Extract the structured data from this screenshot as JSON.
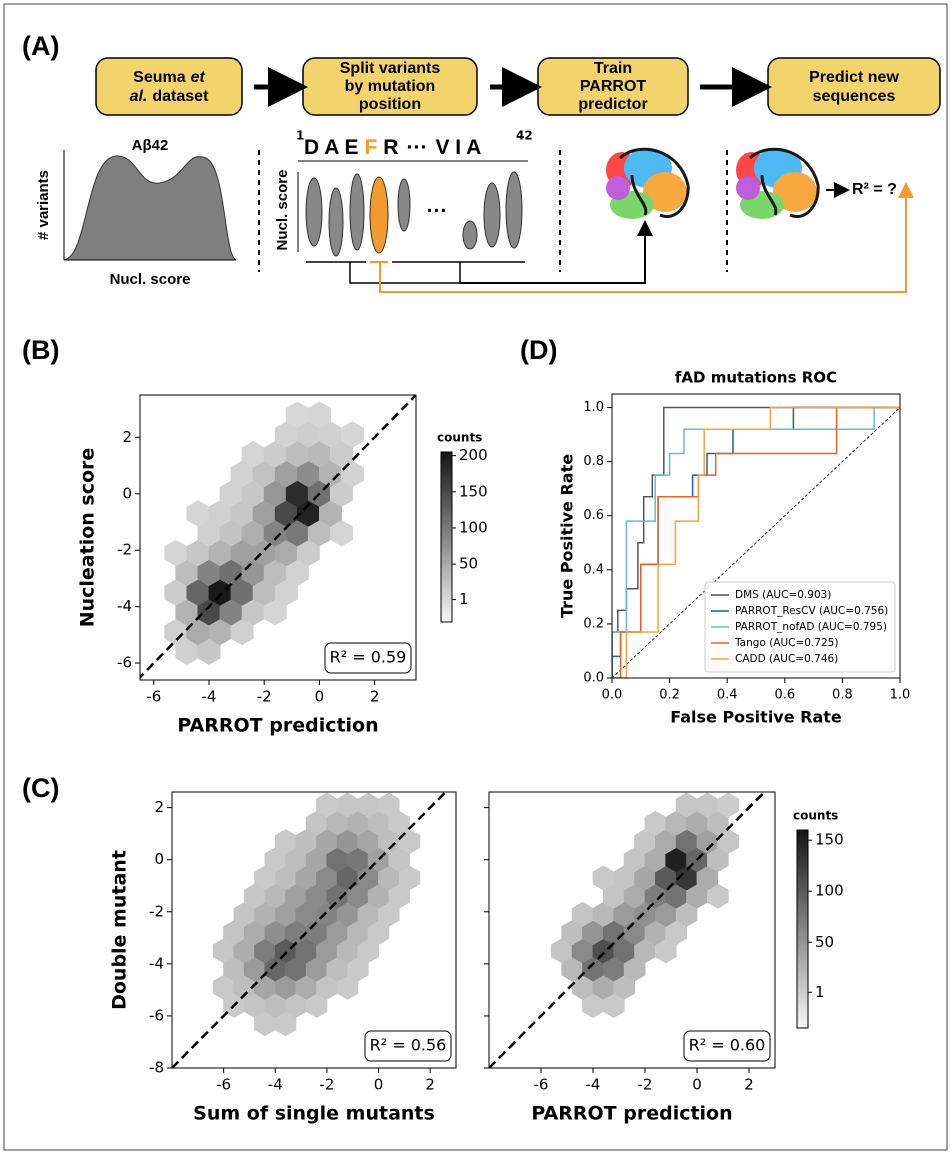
{
  "panel_labels": [
    "(A)",
    "(B)",
    "(C)",
    "(D)"
  ],
  "diagram": {
    "steps": [
      [
        "Seuma",
        "et",
        "al.",
        "dataset"
      ],
      [
        "Split variants",
        "by mutation",
        "position"
      ],
      [
        "Train",
        "PARROT",
        "predictor"
      ],
      [
        "Predict new",
        "sequences"
      ]
    ],
    "density": {
      "title": "Aβ42",
      "ylabel": "# variants",
      "xlabel": "Nucl. score"
    },
    "sequence": {
      "start": "1",
      "residues_before": "D A E",
      "mutated": "F",
      "residues_after": "R",
      "ellipsis": "···",
      "residues_end": "V I A",
      "end": "42",
      "ylabel": "Nucl. score",
      "violin_ellipsis": "···"
    },
    "result": "R² = ?"
  },
  "chart_data": [
    {
      "type": "hexbin",
      "xlabel": "PARROT prediction",
      "ylabel": "Nucleation score",
      "annotation": "R² = 0.59",
      "xlim": [
        -6.5,
        3.5
      ],
      "ylim": [
        -6.6,
        3.5
      ],
      "xticks": [
        -6,
        -4,
        -2,
        0,
        2
      ],
      "yticks": [
        -6,
        -4,
        -2,
        0,
        2
      ],
      "show_yticklabels": true,
      "reference_line": true,
      "x": [
        -4.8,
        -4.0,
        -5.2,
        -4.4,
        -3.6,
        -2.8,
        -4.8,
        -4.0,
        -3.2,
        -2.4,
        -1.6,
        -5.2,
        -4.4,
        -3.6,
        -2.8,
        -2.0,
        -1.2,
        -4.8,
        -4.0,
        -3.2,
        -2.4,
        -1.6,
        -0.8,
        -5.2,
        -4.4,
        -3.6,
        -2.8,
        -2.0,
        -1.2,
        -0.4,
        -4.0,
        -3.2,
        -2.4,
        -1.6,
        -0.8,
        0,
        0.8,
        -4.4,
        -3.6,
        -2.8,
        -2.0,
        -1.2,
        -0.4,
        0.4,
        -3.2,
        -2.4,
        -1.6,
        -0.8,
        0,
        0.8,
        -2.8,
        -2.0,
        -1.2,
        -0.4,
        0.4,
        1.2,
        -2.4,
        -1.6,
        -0.8,
        0,
        0.8,
        -1.2,
        -0.4,
        0.4,
        1.2,
        -0.8,
        0
      ],
      "y": [
        -5.6,
        -5.6,
        -4.9,
        -4.9,
        -4.9,
        -4.9,
        -4.2,
        -4.2,
        -4.2,
        -4.2,
        -4.2,
        -3.5,
        -3.5,
        -3.5,
        -3.5,
        -3.5,
        -3.5,
        -2.8,
        -2.8,
        -2.8,
        -2.8,
        -2.8,
        -2.8,
        -2.1,
        -2.1,
        -2.1,
        -2.1,
        -2.1,
        -2.1,
        -2.1,
        -1.4,
        -1.4,
        -1.4,
        -1.4,
        -1.4,
        -1.4,
        -1.4,
        -0.7,
        -0.7,
        -0.7,
        -0.7,
        -0.7,
        -0.7,
        -0.7,
        0,
        0,
        0,
        0,
        0,
        0,
        0.7,
        0.7,
        0.7,
        0.7,
        0.7,
        0.7,
        1.4,
        1.4,
        1.4,
        1.4,
        1.4,
        2.1,
        2.1,
        2.1,
        2.1,
        2.8,
        2.8
      ],
      "counts": [
        10,
        20,
        10,
        50,
        40,
        10,
        40,
        150,
        90,
        20,
        5,
        15,
        120,
        200,
        110,
        30,
        8,
        30,
        90,
        110,
        70,
        30,
        8,
        5,
        20,
        40,
        60,
        60,
        50,
        15,
        10,
        25,
        45,
        90,
        100,
        30,
        5,
        5,
        10,
        20,
        60,
        150,
        190,
        40,
        8,
        20,
        70,
        180,
        110,
        15,
        8,
        25,
        60,
        80,
        40,
        8,
        5,
        15,
        30,
        35,
        15,
        8,
        12,
        10,
        4,
        3,
        5
      ],
      "colorbar": {
        "label": "counts",
        "lim": [
          -30,
          205
        ],
        "ticks": [
          1,
          50,
          100,
          150,
          200
        ]
      }
    },
    {
      "type": "line",
      "title": "fAD mutations ROC",
      "xlabel": "False Positive Rate",
      "ylabel": "True Positive Rate",
      "xlim": [
        0,
        1
      ],
      "ylim": [
        0,
        1.05
      ],
      "reference_line": true,
      "legend": "lower right",
      "xticks": [
        {
          "value": 0,
          "label": "0.0"
        },
        0.2,
        0.4,
        0.6,
        0.8,
        {
          "value": 1,
          "label": "1.0"
        }
      ],
      "yticks": [
        {
          "value": 0,
          "label": "0.0"
        },
        0.2,
        0.4,
        0.6,
        0.8,
        {
          "value": 1,
          "label": "1.0"
        }
      ],
      "show_yticklabels": true,
      "series": [
        {
          "name": "DMS (AUC=0.903)",
          "color": "#555555",
          "x": [
            0,
            0,
            0.02,
            0.02,
            0.05,
            0.05,
            0.09,
            0.09,
            0.11,
            0.11,
            0.14,
            0.14,
            0.18,
            0.18,
            1.0
          ],
          "values": [
            0,
            0.17,
            0.17,
            0.25,
            0.25,
            0.33,
            0.33,
            0.5,
            0.5,
            0.67,
            0.67,
            0.75,
            0.75,
            1.0,
            1.0
          ]
        },
        {
          "name": "PARROT_ResCV (AUC=0.756)",
          "color": "#1f5fa8",
          "x": [
            0,
            0,
            0.03,
            0.03,
            0.1,
            0.1,
            0.16,
            0.16,
            0.28,
            0.28,
            0.33,
            0.33,
            0.42,
            0.42,
            0.63,
            0.63,
            1.0
          ],
          "values": [
            0,
            0.08,
            0.08,
            0.17,
            0.17,
            0.42,
            0.42,
            0.67,
            0.67,
            0.75,
            0.75,
            0.83,
            0.83,
            0.92,
            0.92,
            1.0,
            1.0
          ]
        },
        {
          "name": "PARROT_nofAD (AUC=0.795)",
          "color": "#66b8dc",
          "x": [
            0,
            0,
            0.05,
            0.05,
            0.15,
            0.15,
            0.2,
            0.2,
            0.25,
            0.25,
            0.91,
            0.91,
            1.0
          ],
          "values": [
            0,
            0.17,
            0.17,
            0.58,
            0.58,
            0.75,
            0.75,
            0.83,
            0.83,
            0.92,
            0.92,
            1.0,
            1.0
          ]
        },
        {
          "name": "Tango (AUC=0.725)",
          "color": "#e8632a",
          "x": [
            0,
            0.03,
            0.03,
            0.1,
            0.1,
            0.16,
            0.16,
            0.3,
            0.3,
            0.36,
            0.36,
            0.78,
            0.78,
            1.0
          ],
          "values": [
            0,
            0,
            0.17,
            0.17,
            0.42,
            0.42,
            0.67,
            0.67,
            0.75,
            0.75,
            0.83,
            0.83,
            1.0,
            1.0
          ]
        },
        {
          "name": "CADD (AUC=0.746)",
          "color": "#f5a340",
          "x": [
            0,
            0.05,
            0.05,
            0.16,
            0.16,
            0.22,
            0.22,
            0.3,
            0.3,
            0.32,
            0.32,
            0.55,
            0.55,
            1.0
          ],
          "values": [
            0,
            0,
            0.17,
            0.17,
            0.42,
            0.42,
            0.58,
            0.58,
            0.75,
            0.75,
            0.92,
            0.92,
            1.0,
            1.0
          ]
        }
      ]
    },
    {
      "type": "hexbin",
      "xlabel": "Sum of single mutants",
      "ylabel": "Double mutant",
      "annotation": "R² = 0.56",
      "xlim": [
        -8,
        3
      ],
      "ylim": [
        -8,
        2.6
      ],
      "xticks": [
        -6,
        -4,
        -2,
        0,
        2
      ],
      "yticks": [
        -8,
        -6,
        -4,
        -2,
        0,
        2
      ],
      "show_yticklabels": true,
      "reference_line": true,
      "x": [
        -4.4,
        -3.6,
        -5.6,
        -4.8,
        -4.0,
        -3.2,
        -2.4,
        -6.0,
        -5.2,
        -4.4,
        -3.6,
        -2.8,
        -2.0,
        -1.2,
        -5.6,
        -4.8,
        -4.0,
        -3.2,
        -2.4,
        -1.6,
        -0.8,
        -6.0,
        -5.2,
        -4.4,
        -3.6,
        -2.8,
        -2.0,
        -1.2,
        -0.4,
        -5.6,
        -4.8,
        -4.0,
        -3.2,
        -2.4,
        -1.6,
        -0.8,
        0,
        -5.2,
        -4.4,
        -3.6,
        -2.8,
        -2.0,
        -1.2,
        -0.4,
        0.4,
        -4.8,
        -4.0,
        -3.2,
        -2.4,
        -1.6,
        -0.8,
        0,
        0.8,
        -4.4,
        -3.6,
        -2.8,
        -2.0,
        -1.2,
        -0.4,
        0.4,
        1.2,
        -4.0,
        -3.2,
        -2.4,
        -1.6,
        -0.8,
        0,
        0.8,
        -3.6,
        -2.8,
        -2.0,
        -1.2,
        -0.4,
        0.4,
        1.2,
        -2.4,
        -1.6,
        -0.8,
        0,
        0.8,
        -2.0,
        -1.2,
        -0.4,
        0.4
      ],
      "y": [
        -6.3,
        -6.3,
        -5.6,
        -5.6,
        -5.6,
        -5.6,
        -5.6,
        -4.9,
        -4.9,
        -4.9,
        -4.9,
        -4.9,
        -4.9,
        -4.9,
        -4.2,
        -4.2,
        -4.2,
        -4.2,
        -4.2,
        -4.2,
        -4.2,
        -3.5,
        -3.5,
        -3.5,
        -3.5,
        -3.5,
        -3.5,
        -3.5,
        -3.5,
        -2.8,
        -2.8,
        -2.8,
        -2.8,
        -2.8,
        -2.8,
        -2.8,
        -2.8,
        -2.1,
        -2.1,
        -2.1,
        -2.1,
        -2.1,
        -2.1,
        -2.1,
        -2.1,
        -1.4,
        -1.4,
        -1.4,
        -1.4,
        -1.4,
        -1.4,
        -1.4,
        -1.4,
        -0.7,
        -0.7,
        -0.7,
        -0.7,
        -0.7,
        -0.7,
        -0.7,
        -0.7,
        0,
        0,
        0,
        0,
        0,
        0,
        0,
        0.7,
        0.7,
        0.7,
        0.7,
        0.7,
        0.7,
        0.7,
        1.4,
        1.4,
        1.4,
        1.4,
        1.4,
        2.1,
        2.1,
        2.1,
        2.1
      ],
      "counts": [
        5,
        5,
        5,
        10,
        15,
        10,
        5,
        5,
        15,
        35,
        45,
        30,
        10,
        5,
        15,
        45,
        90,
        80,
        45,
        15,
        5,
        8,
        30,
        70,
        100,
        80,
        45,
        20,
        5,
        10,
        30,
        55,
        70,
        70,
        45,
        20,
        5,
        10,
        25,
        40,
        60,
        65,
        50,
        20,
        5,
        8,
        20,
        40,
        60,
        80,
        60,
        25,
        5,
        5,
        15,
        35,
        60,
        90,
        60,
        20,
        5,
        5,
        15,
        35,
        80,
        75,
        40,
        10,
        5,
        15,
        35,
        50,
        35,
        15,
        5,
        10,
        20,
        25,
        15,
        5,
        5,
        8,
        8,
        5
      ]
    },
    {
      "type": "hexbin",
      "xlabel": "PARROT prediction",
      "annotation": "R² = 0.60",
      "xlim": [
        -8,
        3
      ],
      "ylim": [
        -8,
        2.6
      ],
      "xticks": [
        -6,
        -4,
        -2,
        0,
        2
      ],
      "yticks": [
        -8,
        -6,
        -4,
        -2,
        0,
        2
      ],
      "show_yticklabels": false,
      "reference_line": true,
      "x": [
        -4.0,
        -3.2,
        -4.4,
        -3.6,
        -2.8,
        -4.8,
        -4.0,
        -3.2,
        -2.4,
        -5.2,
        -4.4,
        -3.6,
        -2.8,
        -2.0,
        -1.2,
        -4.8,
        -4.0,
        -3.2,
        -2.4,
        -1.6,
        -0.8,
        -4.4,
        -3.6,
        -2.8,
        -2.0,
        -1.2,
        -0.4,
        -3.2,
        -2.4,
        -1.6,
        -0.8,
        0,
        0.8,
        -3.6,
        -2.8,
        -2.0,
        -1.2,
        -0.4,
        0.4,
        -2.4,
        -1.6,
        -0.8,
        0,
        0.8,
        -2.0,
        -1.2,
        -0.4,
        0.4,
        1.2,
        -1.6,
        -0.8,
        0,
        0.8,
        -0.4,
        0.4,
        1.2
      ],
      "y": [
        -5.6,
        -5.6,
        -4.9,
        -4.9,
        -4.9,
        -4.2,
        -4.2,
        -4.2,
        -4.2,
        -3.5,
        -3.5,
        -3.5,
        -3.5,
        -3.5,
        -3.5,
        -2.8,
        -2.8,
        -2.8,
        -2.8,
        -2.8,
        -2.8,
        -2.1,
        -2.1,
        -2.1,
        -2.1,
        -2.1,
        -2.1,
        -1.4,
        -1.4,
        -1.4,
        -1.4,
        -1.4,
        -1.4,
        -0.7,
        -0.7,
        -0.7,
        -0.7,
        -0.7,
        -0.7,
        0,
        0,
        0,
        0,
        0,
        0.7,
        0.7,
        0.7,
        0.7,
        0.7,
        1.4,
        1.4,
        1.4,
        1.4,
        2.1,
        2.1,
        2.1
      ],
      "counts": [
        5,
        5,
        15,
        30,
        15,
        20,
        80,
        70,
        20,
        10,
        60,
        110,
        80,
        20,
        5,
        15,
        50,
        80,
        60,
        25,
        5,
        10,
        20,
        45,
        55,
        45,
        15,
        10,
        30,
        70,
        80,
        30,
        5,
        5,
        10,
        35,
        100,
        130,
        30,
        10,
        30,
        150,
        90,
        15,
        8,
        30,
        80,
        40,
        8,
        5,
        20,
        30,
        15,
        8,
        8,
        3
      ],
      "colorbar": {
        "label": "counts",
        "lim": [
          -34,
          160
        ],
        "ticks": [
          1,
          50,
          100,
          150
        ]
      }
    }
  ]
}
